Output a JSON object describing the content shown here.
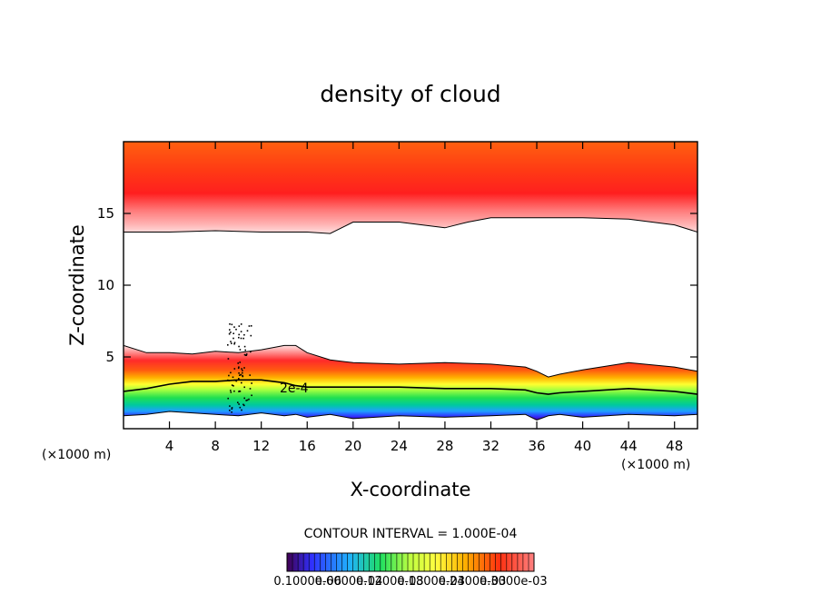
{
  "chart_data": {
    "type": "heatmap",
    "title": "density of cloud",
    "xlabel": "X-coordinate",
    "ylabel": "Z-coordinate",
    "x_unit_left": "(×1000 m)",
    "x_unit_right": "(×1000 m)",
    "xlim": [
      0,
      50
    ],
    "ylim": [
      0,
      20
    ],
    "x_ticks": [
      4,
      8,
      12,
      16,
      20,
      24,
      28,
      32,
      36,
      40,
      44,
      48
    ],
    "x_tick_labels": [
      "4",
      "8",
      "12",
      "16",
      "20",
      "24",
      "28",
      "32",
      "36",
      "40",
      "44",
      "48"
    ],
    "y_ticks": [
      5,
      10,
      15
    ],
    "y_tick_labels": [
      "5",
      "10",
      "15"
    ],
    "contour_interval_text": "CONTOUR INTERVAL = 1.000E-04",
    "contour_label": "2e-4",
    "colorbar_labels": [
      "0.1000e-06",
      "0.6000e-04",
      "0.1200e-03",
      "0.1800e-03",
      "0.2400e-03",
      "0.3000e-03"
    ],
    "colorbar_range": [
      1e-07,
      0.00036
    ],
    "upper_layer": {
      "x": [
        0,
        4,
        8,
        12,
        16,
        18,
        20,
        24,
        28,
        30,
        32,
        36,
        40,
        44,
        48,
        50
      ],
      "base_z": [
        13.7,
        13.7,
        13.8,
        13.7,
        13.7,
        13.6,
        14.4,
        14.4,
        14.0,
        14.4,
        14.7,
        14.7,
        14.7,
        14.6,
        14.2,
        13.7
      ],
      "top_z": 19.6
    },
    "lower_layer": {
      "x": [
        0,
        2,
        4,
        6,
        8,
        10,
        12,
        14,
        15,
        16,
        18,
        20,
        24,
        28,
        32,
        35,
        36,
        37,
        38,
        40,
        44,
        48,
        50
      ],
      "top_z": [
        5.8,
        5.3,
        5.3,
        5.2,
        5.4,
        5.3,
        5.5,
        5.8,
        5.8,
        5.3,
        4.8,
        4.6,
        4.5,
        4.6,
        4.5,
        4.3,
        4.0,
        3.6,
        3.8,
        4.1,
        4.6,
        4.3,
        4.0
      ],
      "contour_2e4_z": [
        2.6,
        2.8,
        3.1,
        3.3,
        3.3,
        3.4,
        3.4,
        3.2,
        3.0,
        2.9,
        2.9,
        2.9,
        2.9,
        2.8,
        2.8,
        2.7,
        2.5,
        2.4,
        2.5,
        2.6,
        2.8,
        2.6,
        2.4
      ],
      "base_z": [
        0.9,
        1.0,
        1.2,
        1.1,
        1.0,
        0.9,
        1.1,
        0.9,
        1.0,
        0.8,
        1.0,
        0.7,
        0.9,
        0.8,
        0.9,
        1.0,
        0.6,
        0.9,
        1.0,
        0.8,
        1.0,
        0.9,
        1.0
      ]
    }
  }
}
